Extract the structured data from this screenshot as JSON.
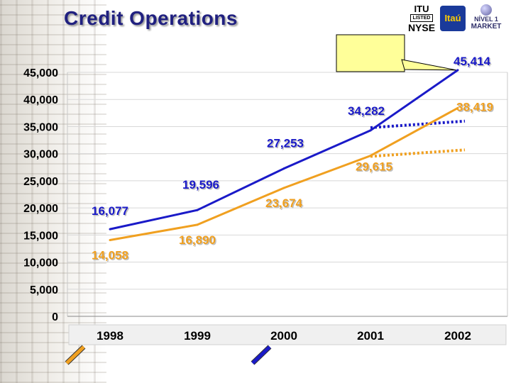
{
  "title": "Credit Operations",
  "logos": {
    "itu_line1": "ITU",
    "itu_line2": "LISTED",
    "itu_line3": "NYSE",
    "itau": "Itaú",
    "nivel_line1": "NÍVEL 1",
    "nivel_line2": "MARKET"
  },
  "colors": {
    "series_blue": "#1a1ac8",
    "series_orange": "#f0a020",
    "title": "#202080",
    "grid": "#d8d8d8",
    "callout_fill": "#ffff99"
  },
  "chart_data": {
    "type": "line",
    "x": [
      "1998",
      "1999",
      "2000",
      "2001",
      "2002"
    ],
    "series": [
      {
        "color": "#1a1ac8",
        "values": [
          16077,
          19596,
          27253,
          34282,
          45414
        ],
        "labels": [
          "16,077",
          "19,596",
          "27,253",
          "34,282",
          "45,414"
        ]
      },
      {
        "color": "#f0a020",
        "values": [
          14058,
          16890,
          23674,
          29615,
          38419
        ],
        "labels": [
          "14,058",
          "16,890",
          "23,674",
          "29,615",
          "38,419"
        ]
      }
    ],
    "trend_extensions": [
      {
        "color": "#1a1ac8",
        "style": "dotted",
        "from": [
          "2001",
          34800
        ],
        "to": [
          "2002",
          36000
        ]
      },
      {
        "color": "#f0a020",
        "style": "dotted",
        "from": [
          "2001",
          29500
        ],
        "to": [
          "2002",
          30700
        ]
      }
    ],
    "yticks": [
      "45,000",
      "40,000",
      "35,000",
      "30,000",
      "25,000",
      "20,000",
      "15,000",
      "10,000",
      "5,000",
      "0"
    ],
    "ytick_values": [
      45000,
      40000,
      35000,
      30000,
      25000,
      20000,
      15000,
      10000,
      5000,
      0
    ],
    "ylim": [
      0,
      45000
    ],
    "grid": true,
    "legend_swatches": [
      {
        "color": "#f0a020"
      },
      {
        "color": "#1a1ac8"
      }
    ],
    "callout": {
      "text": "",
      "fill": "#ffff99",
      "points_to": "2002 blue"
    }
  }
}
